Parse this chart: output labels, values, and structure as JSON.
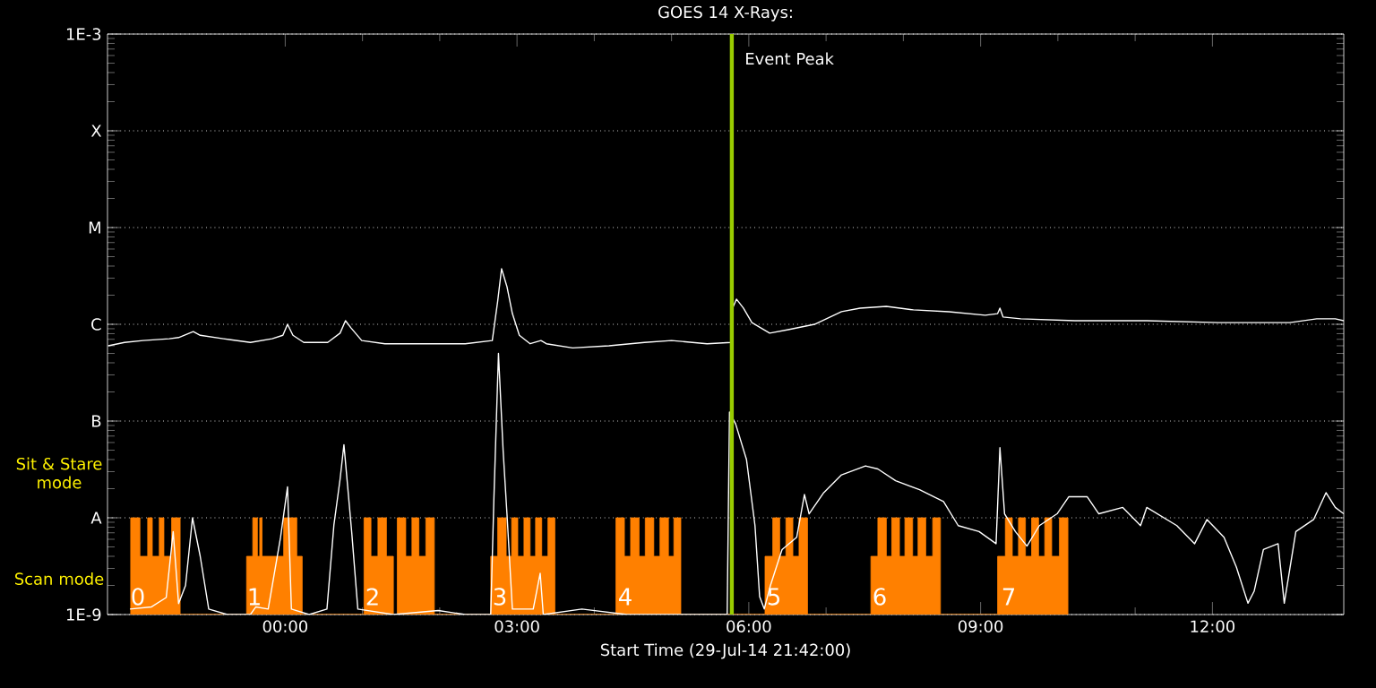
{
  "chart_data": {
    "type": "line",
    "title": "GOES 14 X-Rays:",
    "xlabel": "Start Time (29-Jul-14 21:42:00)",
    "xlim": [
      -2.3,
      13.7
    ],
    "xticks": [
      {
        "value": 0,
        "label": "00:00"
      },
      {
        "value": 3,
        "label": "03:00"
      },
      {
        "value": 6,
        "label": "06:00"
      },
      {
        "value": 9,
        "label": "09:00"
      },
      {
        "value": 12,
        "label": "12:00"
      }
    ],
    "ylim": [
      1e-09,
      0.001
    ],
    "yticks": [
      {
        "value": 1e-09,
        "label": "1E-9"
      },
      {
        "value": 1e-08,
        "label": "A"
      },
      {
        "value": 1e-07,
        "label": "B"
      },
      {
        "value": 1e-06,
        "label": "C"
      },
      {
        "value": 1e-05,
        "label": "M"
      },
      {
        "value": 0.0001,
        "label": "X"
      },
      {
        "value": 0.001,
        "label": "1E-3"
      }
    ],
    "log": true,
    "grid": "y",
    "series": [
      {
        "type": "area",
        "color": "#ff8000",
        "x": [
          -2.0,
          -2.0,
          -1.88,
          -1.88,
          -1.78,
          -1.78,
          -1.72,
          -1.72,
          -1.63,
          -1.63,
          -1.57,
          -1.57,
          -1.47,
          -1.47,
          -1.36,
          -1.36,
          -0.5,
          -0.5,
          -0.42,
          -0.42,
          -0.36,
          -0.36,
          -0.33,
          -0.33,
          -0.3,
          -0.3,
          -0.02,
          -0.02,
          0.15,
          0.15,
          0.22,
          0.22,
          1.02,
          1.02,
          1.11,
          1.11,
          1.2,
          1.2,
          1.31,
          1.31,
          1.4,
          1.4,
          1.45,
          1.45,
          1.56,
          1.56,
          1.64,
          1.64,
          1.73,
          1.73,
          1.82,
          1.82,
          1.93,
          1.93,
          2.66,
          2.66,
          2.75,
          2.75,
          2.86,
          2.86,
          2.93,
          2.93,
          3.01,
          3.01,
          3.09,
          3.09,
          3.17,
          3.17,
          3.24,
          3.24,
          3.32,
          3.32,
          3.4,
          3.4,
          3.49,
          3.49,
          4.28,
          4.28,
          4.39,
          4.39,
          4.47,
          4.47,
          4.58,
          4.58,
          4.66,
          4.66,
          4.77,
          4.77,
          4.85,
          4.85,
          4.96,
          4.96,
          5.03,
          5.03,
          5.12,
          5.12,
          6.21,
          6.21,
          6.31,
          6.31,
          6.4,
          6.4,
          6.48,
          6.48,
          6.57,
          6.57,
          6.65,
          6.65,
          6.76,
          6.76,
          7.58,
          7.58,
          7.67,
          7.67,
          7.78,
          7.78,
          7.85,
          7.85,
          7.95,
          7.95,
          8.02,
          8.02,
          8.12,
          8.12,
          8.19,
          8.19,
          8.29,
          8.29,
          8.38,
          8.38,
          8.48,
          8.48,
          9.22,
          9.22,
          9.32,
          9.32,
          9.41,
          9.41,
          9.49,
          9.49,
          9.58,
          9.58,
          9.66,
          9.66,
          9.75,
          9.75,
          9.83,
          9.83,
          9.92,
          9.92,
          10.02,
          10.02,
          10.13,
          10.13
        ],
        "values": [
          1e-09,
          1e-08,
          1e-08,
          4e-09,
          4e-09,
          1e-08,
          1e-08,
          4e-09,
          4e-09,
          1e-08,
          1e-08,
          4e-09,
          4e-09,
          1e-08,
          1e-08,
          1e-09,
          1e-09,
          4e-09,
          4e-09,
          1e-08,
          1e-08,
          4e-09,
          4e-09,
          1e-08,
          1e-08,
          4e-09,
          4e-09,
          1e-08,
          1e-08,
          4e-09,
          4e-09,
          1e-09,
          1e-09,
          1e-08,
          1e-08,
          4e-09,
          4e-09,
          1e-08,
          1e-08,
          4e-09,
          4e-09,
          1e-09,
          1e-09,
          1e-08,
          1e-08,
          4e-09,
          4e-09,
          1e-08,
          1e-08,
          4e-09,
          4e-09,
          1e-08,
          1e-08,
          1e-09,
          1e-09,
          4e-09,
          4e-09,
          1e-08,
          1e-08,
          4e-09,
          4e-09,
          1e-08,
          1e-08,
          4e-09,
          4e-09,
          1e-08,
          1e-08,
          4e-09,
          4e-09,
          1e-08,
          1e-08,
          4e-09,
          4e-09,
          1e-08,
          1e-08,
          1e-09,
          1e-09,
          1e-08,
          1e-08,
          4e-09,
          4e-09,
          1e-08,
          1e-08,
          4e-09,
          4e-09,
          1e-08,
          1e-08,
          4e-09,
          4e-09,
          1e-08,
          1e-08,
          4e-09,
          4e-09,
          1e-08,
          1e-08,
          1e-09,
          1e-09,
          4e-09,
          4e-09,
          1e-08,
          1e-08,
          4e-09,
          4e-09,
          1e-08,
          1e-08,
          4e-09,
          4e-09,
          1e-08,
          1e-08,
          1e-09,
          1e-09,
          4e-09,
          4e-09,
          1e-08,
          1e-08,
          4e-09,
          4e-09,
          1e-08,
          1e-08,
          4e-09,
          4e-09,
          1e-08,
          1e-08,
          4e-09,
          4e-09,
          1e-08,
          1e-08,
          4e-09,
          4e-09,
          1e-08,
          1e-08,
          1e-09,
          1e-09,
          4e-09,
          4e-09,
          1e-08,
          1e-08,
          4e-09,
          4e-09,
          1e-08,
          1e-08,
          4e-09,
          4e-09,
          1e-08,
          1e-08,
          4e-09,
          4e-09,
          1e-08,
          1e-08,
          4e-09,
          4e-09,
          1e-08,
          1e-08,
          1e-09
        ]
      },
      {
        "color": "#ffffff",
        "x": [
          -2.29,
          -2.08,
          -1.84,
          -1.5,
          -1.38,
          -1.19,
          -1.1,
          -0.8,
          -0.45,
          -0.17,
          -0.03,
          0.03,
          0.1,
          0.24,
          0.55,
          0.71,
          0.78,
          0.85,
          0.99,
          1.29,
          1.64,
          2.33,
          2.68,
          2.75,
          2.8,
          2.87,
          2.94,
          3.03,
          3.17,
          3.31,
          3.38,
          3.72,
          4.19,
          4.65,
          5.0,
          5.46,
          5.77,
          5.79,
          5.84,
          5.93,
          6.04,
          6.27,
          6.51,
          6.85,
          7.2,
          7.44,
          7.78,
          8.13,
          8.59,
          9.06,
          9.22,
          9.25,
          9.29,
          9.52,
          10.22,
          11.15,
          12.08,
          12.54,
          13.0,
          13.35,
          13.59,
          13.7
        ],
        "values": [
          6e-07,
          6.5e-07,
          6.8e-07,
          7.1e-07,
          7.3e-07,
          8.4e-07,
          7.7e-07,
          7.1e-07,
          6.5e-07,
          7.1e-07,
          7.7e-07,
          1e-06,
          7.7e-07,
          6.5e-07,
          6.5e-07,
          8.1e-07,
          1.09e-06,
          9.2e-07,
          6.8e-07,
          6.3e-07,
          6.3e-07,
          6.3e-07,
          6.8e-07,
          1.74e-06,
          3.75e-06,
          2.45e-06,
          1.29e-06,
          7.7e-07,
          6.3e-07,
          6.8e-07,
          6.3e-07,
          5.7e-07,
          6e-07,
          6.5e-07,
          6.8e-07,
          6.3e-07,
          6.5e-07,
          1.47e-06,
          1.82e-06,
          1.47e-06,
          1.04e-06,
          8.1e-07,
          8.8e-07,
          1e-06,
          1.35e-06,
          1.47e-06,
          1.53e-06,
          1.41e-06,
          1.35e-06,
          1.24e-06,
          1.29e-06,
          1.47e-06,
          1.19e-06,
          1.14e-06,
          1.09e-06,
          1.09e-06,
          1.04e-06,
          1.04e-06,
          1.04e-06,
          1.14e-06,
          1.14e-06,
          1.09e-06
        ]
      },
      {
        "color": "#ffffff",
        "x": [
          -2.01,
          -1.73,
          -1.54,
          -1.45,
          -1.38,
          -1.29,
          -1.2,
          -1.1,
          -0.99,
          -0.75,
          -0.45,
          -0.38,
          -0.22,
          -0.06,
          0.03,
          0.08,
          0.31,
          0.54,
          0.63,
          0.71,
          0.76,
          0.86,
          0.94,
          1.4,
          1.98,
          2.33,
          2.66,
          2.7,
          2.76,
          2.82,
          2.87,
          2.94,
          3.21,
          3.3,
          3.34,
          3.84,
          4.42,
          5.23,
          5.72,
          5.75,
          5.83,
          5.97,
          6.08,
          6.14,
          6.2,
          6.28,
          6.43,
          6.62,
          6.72,
          6.78,
          6.97,
          7.2,
          7.51,
          7.67,
          7.9,
          8.21,
          8.52,
          8.71,
          8.98,
          9.2,
          9.25,
          9.31,
          9.45,
          9.6,
          9.76,
          9.99,
          10.14,
          10.38,
          10.53,
          10.84,
          11.07,
          11.15,
          11.54,
          11.77,
          11.93,
          12.15,
          12.31,
          12.46,
          12.54,
          12.66,
          12.85,
          12.93,
          13.08,
          13.31,
          13.47,
          13.59,
          13.7
        ],
        "values": [
          1.14e-09,
          1.2e-09,
          1.5e-09,
          7.2e-09,
          1.3e-09,
          2e-09,
          1e-08,
          4e-09,
          1.14e-09,
          1e-09,
          1e-09,
          1.2e-09,
          1.14e-09,
          6.3e-09,
          2.09e-08,
          1.14e-09,
          1e-09,
          1.14e-09,
          8.4e-09,
          2.5e-08,
          5.7e-08,
          7.2e-09,
          1.14e-09,
          1e-09,
          1.1e-09,
          1e-09,
          1e-09,
          1.5e-08,
          5e-07,
          5e-08,
          1.1e-08,
          1.14e-09,
          1.14e-09,
          2.67e-09,
          1e-09,
          1.14e-09,
          1e-09,
          1e-09,
          1e-09,
          1.24e-07,
          9.3e-08,
          4e-08,
          8.3e-09,
          1.53e-09,
          1.14e-09,
          2e-09,
          4.7e-09,
          6.3e-09,
          1.74e-08,
          1.1e-08,
          1.82e-08,
          2.78e-08,
          3.44e-08,
          3.2e-08,
          2.42e-08,
          1.95e-08,
          1.47e-08,
          8.3e-09,
          7.2e-09,
          5.4e-09,
          5.3e-08,
          1.1e-08,
          7.2e-09,
          5.1e-09,
          8.3e-09,
          1.1e-08,
          1.65e-08,
          1.65e-08,
          1.1e-08,
          1.28e-08,
          8.3e-09,
          1.28e-08,
          8.3e-09,
          5.4e-09,
          9.6e-09,
          6.3e-09,
          3.1e-09,
          1.31e-09,
          1.74e-09,
          4.7e-09,
          5.4e-09,
          1.31e-09,
          7.2e-09,
          9.6e-09,
          1.82e-08,
          1.28e-08,
          1.1e-08
        ]
      }
    ],
    "ref_lines": [
      {
        "axis": "x",
        "value": 5.78,
        "label": "Event Peak",
        "color": "#99cc00"
      }
    ],
    "annotations": [
      "Sit & Stare mode",
      "Scan mode",
      "0",
      "1",
      "2",
      "3",
      "4",
      "5",
      "6",
      "7"
    ]
  }
}
